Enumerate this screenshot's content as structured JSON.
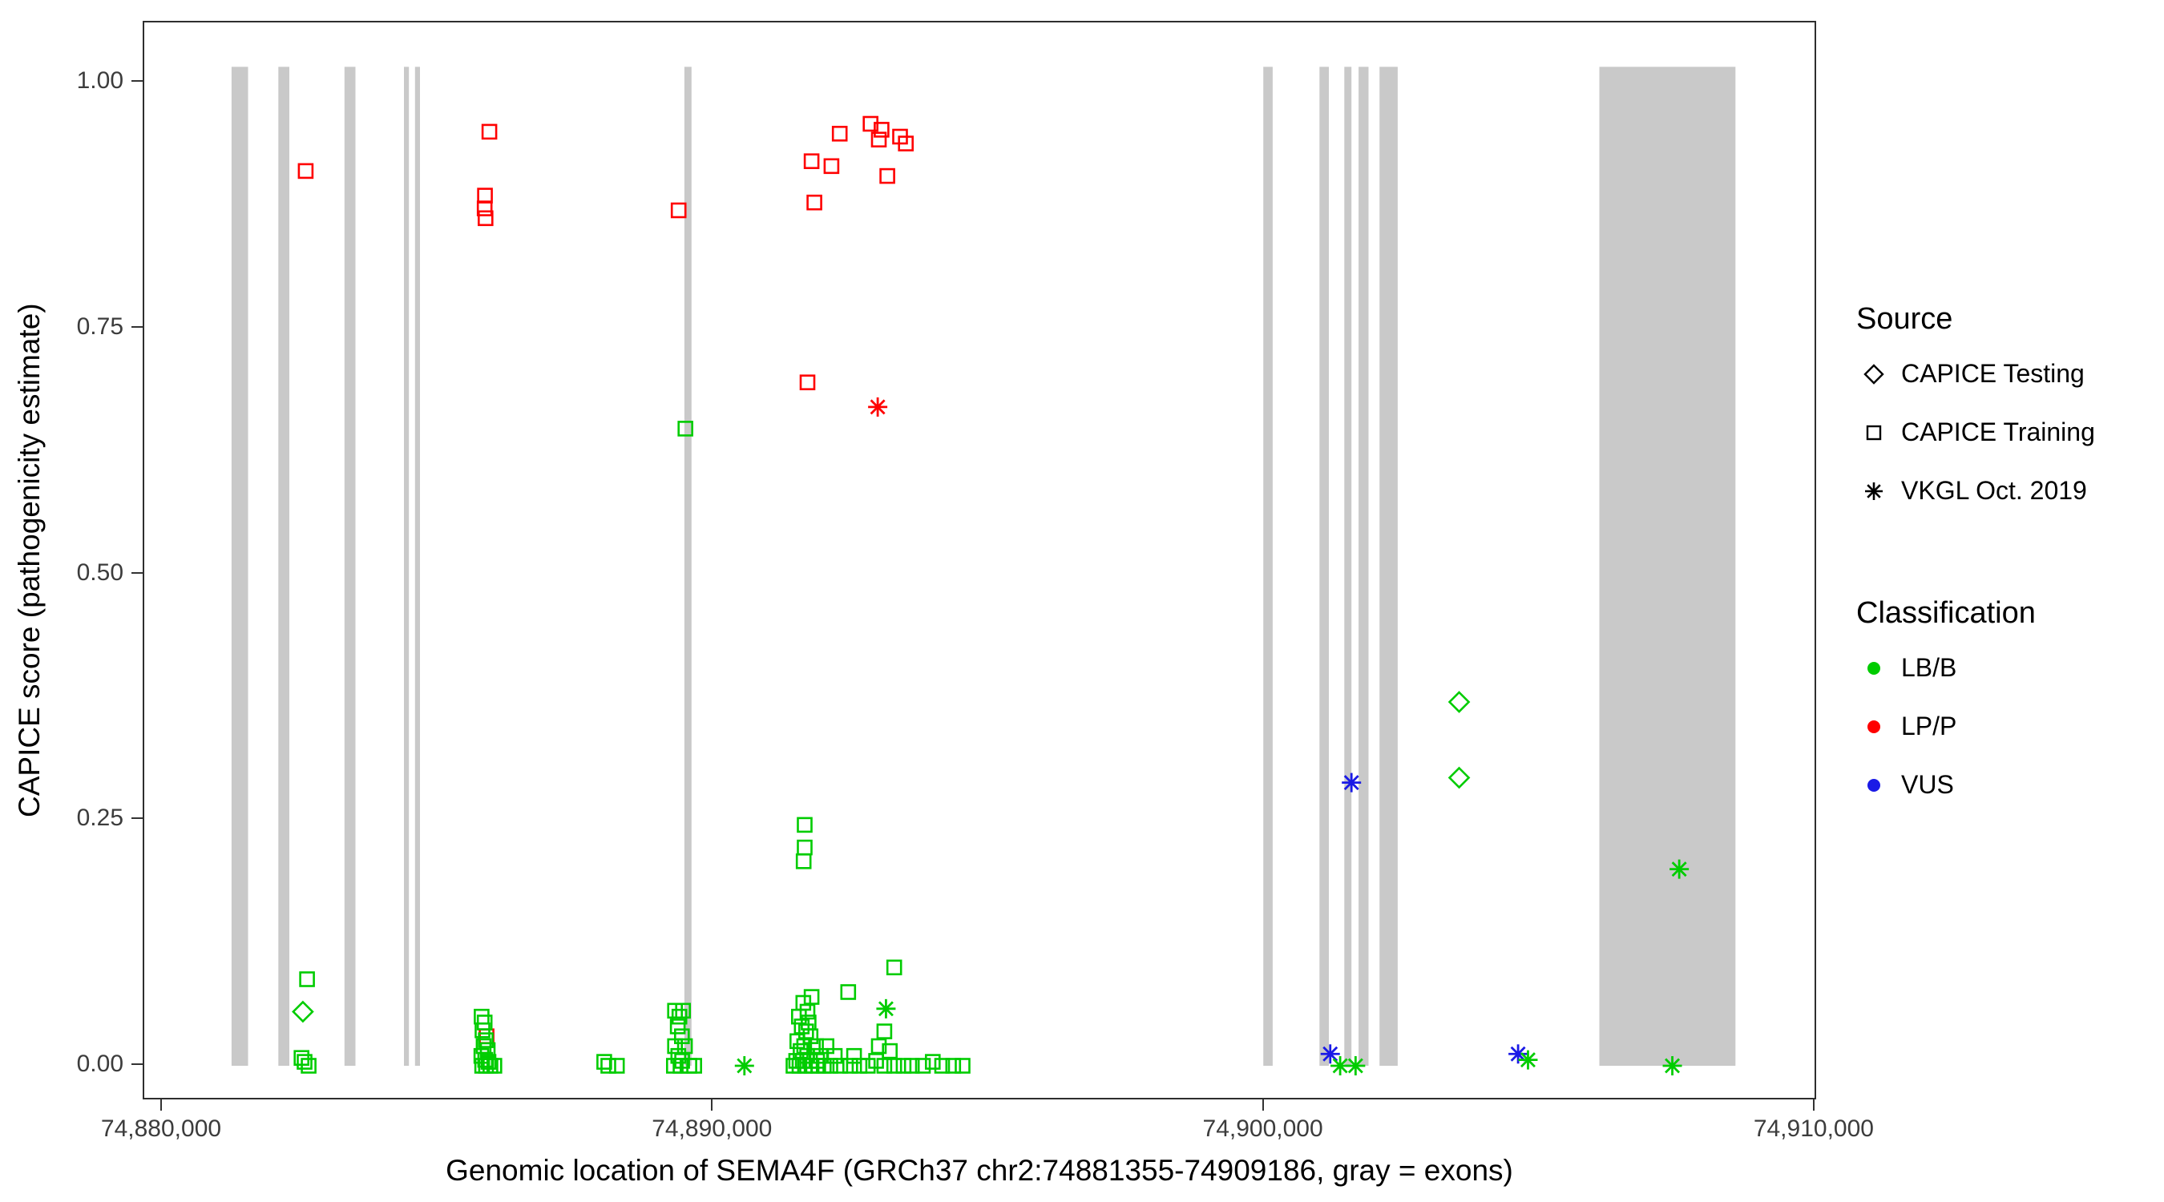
{
  "figure": {
    "xlabel": "Genomic location of SEMA4F (GRCh37 chr2:74881355-74909186, gray = exons)",
    "ylabel": "CAPICE score (pathogenicity estimate)"
  },
  "legend": {
    "source": {
      "title": "Source",
      "items": [
        {
          "label": "CAPICE Testing",
          "shape": "diamond"
        },
        {
          "label": "CAPICE Training",
          "shape": "square"
        },
        {
          "label": "VKGL Oct. 2019",
          "shape": "asterisk"
        }
      ]
    },
    "classification": {
      "title": "Classification",
      "items": [
        {
          "label": "LB/B",
          "color": "#00CC00"
        },
        {
          "label": "LP/P",
          "color": "#FF0000"
        },
        {
          "label": "VUS",
          "color": "#1A1AE6"
        }
      ]
    }
  },
  "colors": {
    "LB/B": "#00CC00",
    "LP/P": "#FF0000",
    "VUS": "#1A1AE6",
    "exon": "#C9C9C9",
    "legend_key": "#000000"
  },
  "chart_data": {
    "type": "scatter",
    "title": "",
    "xlabel": "Genomic location of SEMA4F (GRCh37 chr2:74881355-74909186, gray = exons)",
    "ylabel": "CAPICE score (pathogenicity estimate)",
    "xlim": [
      74879665,
      74910045
    ],
    "ylim": [
      -0.036,
      1.06
    ],
    "grid": false,
    "legend_position": "right",
    "x_ticks": [
      {
        "value": 74880000,
        "label": "74,880,000"
      },
      {
        "value": 74890000,
        "label": "74,890,000"
      },
      {
        "value": 74900000,
        "label": "74,900,000"
      },
      {
        "value": 74910000,
        "label": "74,910,000"
      }
    ],
    "y_ticks": [
      {
        "value": 0.0,
        "label": "0.00"
      },
      {
        "value": 0.25,
        "label": "0.25"
      },
      {
        "value": 0.5,
        "label": "0.50"
      },
      {
        "value": 0.75,
        "label": "0.75"
      },
      {
        "value": 1.0,
        "label": "1.00"
      }
    ],
    "exon_format": [
      "start",
      "end"
    ],
    "exons": [
      [
        74881250,
        74881550
      ],
      [
        74882100,
        74882300
      ],
      [
        74883300,
        74883500
      ],
      [
        74884380,
        74884470
      ],
      [
        74884580,
        74884670
      ],
      [
        74889470,
        74889600
      ],
      [
        74899980,
        74900150
      ],
      [
        74901000,
        74901170
      ],
      [
        74901450,
        74901580
      ],
      [
        74901710,
        74901890
      ],
      [
        74902090,
        74902420
      ],
      [
        74906080,
        74908550
      ]
    ],
    "sources": {
      "testing": "CAPICE Testing",
      "training": "CAPICE Training",
      "vkgl": "VKGL Oct. 2019"
    },
    "point_format": [
      "genomic_position",
      "capice_score",
      "source",
      "classification"
    ],
    "points": [
      [
        74882595,
        0.91,
        "training",
        "LP/P"
      ],
      [
        74885930,
        0.95,
        "training",
        "LP/P"
      ],
      [
        74885850,
        0.885,
        "training",
        "LP/P"
      ],
      [
        74885845,
        0.872,
        "training",
        "LP/P"
      ],
      [
        74885860,
        0.862,
        "training",
        "LP/P"
      ],
      [
        74889365,
        0.87,
        "training",
        "LP/P"
      ],
      [
        74891705,
        0.695,
        "training",
        "LP/P"
      ],
      [
        74891780,
        0.92,
        "training",
        "LP/P"
      ],
      [
        74891830,
        0.878,
        "training",
        "LP/P"
      ],
      [
        74892140,
        0.915,
        "training",
        "LP/P"
      ],
      [
        74892290,
        0.948,
        "training",
        "LP/P"
      ],
      [
        74892850,
        0.958,
        "training",
        "LP/P"
      ],
      [
        74893050,
        0.952,
        "training",
        "LP/P"
      ],
      [
        74893000,
        0.942,
        "training",
        "LP/P"
      ],
      [
        74893385,
        0.945,
        "training",
        "LP/P"
      ],
      [
        74893490,
        0.938,
        "training",
        "LP/P"
      ],
      [
        74893155,
        0.905,
        "training",
        "LP/P"
      ],
      [
        74885880,
        0.03,
        "training",
        "LP/P"
      ],
      [
        74892980,
        0.67,
        "vkgl",
        "LP/P"
      ],
      [
        74901580,
        0.288,
        "vkgl",
        "VUS"
      ],
      [
        74901195,
        0.012,
        "vkgl",
        "VUS"
      ],
      [
        74904605,
        0.012,
        "vkgl",
        "VUS"
      ],
      [
        74890560,
        0.0,
        "vkgl",
        "LB/B"
      ],
      [
        74893130,
        0.058,
        "vkgl",
        "LB/B"
      ],
      [
        74901375,
        0.0,
        "vkgl",
        "LB/B"
      ],
      [
        74901655,
        0.0,
        "vkgl",
        "LB/B"
      ],
      [
        74904785,
        0.006,
        "vkgl",
        "LB/B"
      ],
      [
        74907530,
        0.2,
        "vkgl",
        "LB/B"
      ],
      [
        74907405,
        0.0,
        "vkgl",
        "LB/B"
      ],
      [
        74882545,
        0.055,
        "testing",
        "LB/B"
      ],
      [
        74903535,
        0.37,
        "testing",
        "LB/B"
      ],
      [
        74903535,
        0.293,
        "testing",
        "LB/B"
      ],
      [
        74882620,
        0.088,
        "training",
        "LB/B"
      ],
      [
        74882520,
        0.008,
        "training",
        "LB/B"
      ],
      [
        74882575,
        0.004,
        "training",
        "LB/B"
      ],
      [
        74882650,
        0.0,
        "training",
        "LB/B"
      ],
      [
        74885790,
        0.05,
        "training",
        "LB/B"
      ],
      [
        74885845,
        0.044,
        "training",
        "LB/B"
      ],
      [
        74885805,
        0.036,
        "training",
        "LB/B"
      ],
      [
        74885865,
        0.026,
        "training",
        "LB/B"
      ],
      [
        74885825,
        0.02,
        "training",
        "LB/B"
      ],
      [
        74885900,
        0.016,
        "training",
        "LB/B"
      ],
      [
        74885785,
        0.01,
        "training",
        "LB/B"
      ],
      [
        74885855,
        0.006,
        "training",
        "LB/B"
      ],
      [
        74885915,
        0.004,
        "training",
        "LB/B"
      ],
      [
        74885800,
        0.0,
        "training",
        "LB/B"
      ],
      [
        74885870,
        0.0,
        "training",
        "LB/B"
      ],
      [
        74885950,
        0.0,
        "training",
        "LB/B"
      ],
      [
        74886020,
        0.0,
        "training",
        "LB/B"
      ],
      [
        74888015,
        0.004,
        "training",
        "LB/B"
      ],
      [
        74888090,
        0.0,
        "training",
        "LB/B"
      ],
      [
        74888245,
        0.0,
        "training",
        "LB/B"
      ],
      [
        74889490,
        0.648,
        "training",
        "LB/B"
      ],
      [
        74889300,
        0.056,
        "training",
        "LB/B"
      ],
      [
        74889445,
        0.056,
        "training",
        "LB/B"
      ],
      [
        74889380,
        0.05,
        "training",
        "LB/B"
      ],
      [
        74889350,
        0.04,
        "training",
        "LB/B"
      ],
      [
        74889425,
        0.03,
        "training",
        "LB/B"
      ],
      [
        74889300,
        0.02,
        "training",
        "LB/B"
      ],
      [
        74889480,
        0.02,
        "training",
        "LB/B"
      ],
      [
        74889360,
        0.01,
        "training",
        "LB/B"
      ],
      [
        74889430,
        0.005,
        "training",
        "LB/B"
      ],
      [
        74889280,
        0.0,
        "training",
        "LB/B"
      ],
      [
        74889400,
        0.0,
        "training",
        "LB/B"
      ],
      [
        74889560,
        0.0,
        "training",
        "LB/B"
      ],
      [
        74889650,
        0.0,
        "training",
        "LB/B"
      ],
      [
        74891655,
        0.245,
        "training",
        "LB/B"
      ],
      [
        74891655,
        0.222,
        "training",
        "LB/B"
      ],
      [
        74891635,
        0.208,
        "training",
        "LB/B"
      ],
      [
        74891780,
        0.07,
        "training",
        "LB/B"
      ],
      [
        74891630,
        0.064,
        "training",
        "LB/B"
      ],
      [
        74891705,
        0.055,
        "training",
        "LB/B"
      ],
      [
        74892445,
        0.075,
        "training",
        "LB/B"
      ],
      [
        74891550,
        0.05,
        "training",
        "LB/B"
      ],
      [
        74891725,
        0.044,
        "training",
        "LB/B"
      ],
      [
        74891600,
        0.04,
        "training",
        "LB/B"
      ],
      [
        74891680,
        0.035,
        "training",
        "LB/B"
      ],
      [
        74891760,
        0.03,
        "training",
        "LB/B"
      ],
      [
        74891520,
        0.025,
        "training",
        "LB/B"
      ],
      [
        74891645,
        0.02,
        "training",
        "LB/B"
      ],
      [
        74891860,
        0.02,
        "training",
        "LB/B"
      ],
      [
        74892050,
        0.02,
        "training",
        "LB/B"
      ],
      [
        74891580,
        0.015,
        "training",
        "LB/B"
      ],
      [
        74891700,
        0.01,
        "training",
        "LB/B"
      ],
      [
        74891940,
        0.01,
        "training",
        "LB/B"
      ],
      [
        74892200,
        0.01,
        "training",
        "LB/B"
      ],
      [
        74892550,
        0.01,
        "training",
        "LB/B"
      ],
      [
        74891500,
        0.005,
        "training",
        "LB/B"
      ],
      [
        74891620,
        0.005,
        "training",
        "LB/B"
      ],
      [
        74891750,
        0.005,
        "training",
        "LB/B"
      ],
      [
        74891880,
        0.005,
        "training",
        "LB/B"
      ],
      [
        74891450,
        0.0,
        "training",
        "LB/B"
      ],
      [
        74891560,
        0.0,
        "training",
        "LB/B"
      ],
      [
        74891660,
        0.0,
        "training",
        "LB/B"
      ],
      [
        74891780,
        0.0,
        "training",
        "LB/B"
      ],
      [
        74891900,
        0.0,
        "training",
        "LB/B"
      ],
      [
        74892000,
        0.0,
        "training",
        "LB/B"
      ],
      [
        74892120,
        0.0,
        "training",
        "LB/B"
      ],
      [
        74892300,
        0.0,
        "training",
        "LB/B"
      ],
      [
        74892480,
        0.0,
        "training",
        "LB/B"
      ],
      [
        74892650,
        0.0,
        "training",
        "LB/B"
      ],
      [
        74892800,
        0.0,
        "training",
        "LB/B"
      ],
      [
        74893280,
        0.1,
        "training",
        "LB/B"
      ],
      [
        74893100,
        0.035,
        "training",
        "LB/B"
      ],
      [
        74893000,
        0.02,
        "training",
        "LB/B"
      ],
      [
        74893200,
        0.015,
        "training",
        "LB/B"
      ],
      [
        74892950,
        0.005,
        "training",
        "LB/B"
      ],
      [
        74893100,
        0.0,
        "training",
        "LB/B"
      ],
      [
        74893280,
        0.0,
        "training",
        "LB/B"
      ],
      [
        74893450,
        0.0,
        "training",
        "LB/B"
      ],
      [
        74893600,
        0.0,
        "training",
        "LB/B"
      ],
      [
        74893800,
        0.0,
        "training",
        "LB/B"
      ],
      [
        74893980,
        0.004,
        "training",
        "LB/B"
      ],
      [
        74894150,
        0.0,
        "training",
        "LB/B"
      ],
      [
        74894350,
        0.0,
        "training",
        "LB/B"
      ],
      [
        74894520,
        0.0,
        "training",
        "LB/B"
      ]
    ]
  }
}
